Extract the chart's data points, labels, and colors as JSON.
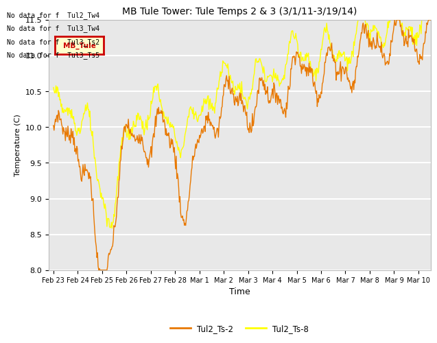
{
  "title": "MB Tule Tower: Tule Temps 2 & 3 (3/1/11-3/19/14)",
  "xlabel": "Time",
  "ylabel": "Temperature (C)",
  "ylim": [
    8.0,
    11.5
  ],
  "yticks": [
    8.0,
    8.5,
    9.0,
    9.5,
    10.0,
    10.5,
    11.0,
    11.5
  ],
  "xlabels": [
    "Feb 23",
    "Feb 24",
    "Feb 25",
    "Feb 26",
    "Feb 27",
    "Feb 28",
    "Mar 1",
    "Mar 2",
    "Mar 3",
    "Mar 4",
    "Mar 5",
    "Mar 6",
    "Mar 7",
    "Mar 8",
    "Mar 9",
    "Mar 10"
  ],
  "color_ts2": "#E87800",
  "color_ts8": "#FFFF00",
  "legend_labels": [
    "Tul2_Ts-2",
    "Tul2_Ts-8"
  ],
  "no_data_texts": [
    "No data for f  Tul2_Tw4",
    "No data for f  Tul3_Tw4",
    "No data for f  Tul3_Ts2",
    "No data for f  Tul3_Ts5"
  ],
  "tooltip_text": "MB_Tule",
  "tooltip_bg": "#FFFFCC",
  "tooltip_border": "#CC0000",
  "bg_color": "#E8E8E8",
  "grid_color": "#FFFFFF"
}
